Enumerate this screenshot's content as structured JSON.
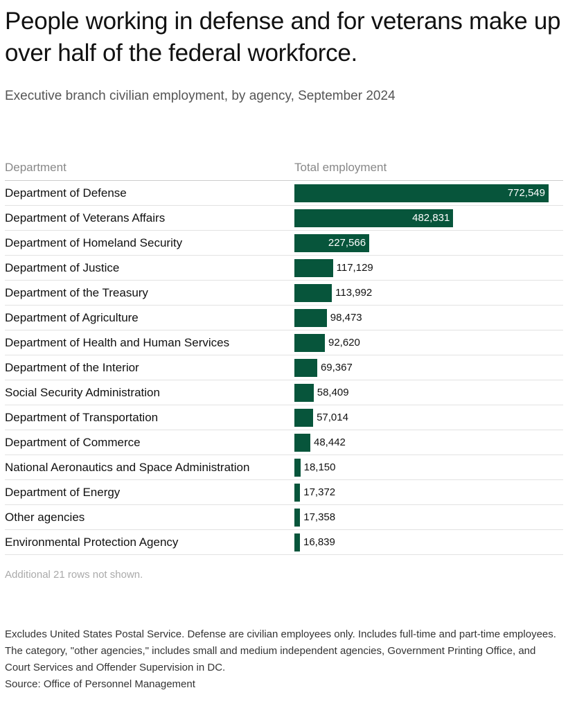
{
  "chart_data": {
    "type": "bar",
    "title": "People working in defense and for veterans make up over half of the federal workforce.",
    "subtitle": "Executive branch civilian employment, by agency, September 2024",
    "columns": [
      "Department",
      "Total employment"
    ],
    "categories": [
      "Department of Defense",
      "Department of Veterans Affairs",
      "Department of Homeland Security",
      "Department of Justice",
      "Department of the Treasury",
      "Department of Agriculture",
      "Department of Health and Human Services",
      "Department of the Interior",
      "Social Security Administration",
      "Department of Transportation",
      "Department of Commerce",
      "National Aeronautics and Space Administration",
      "Department of Energy",
      "Other agencies",
      "Environmental Protection Agency"
    ],
    "values": [
      772549,
      482831,
      227566,
      117129,
      113992,
      98473,
      92620,
      69367,
      58409,
      57014,
      48442,
      18150,
      17372,
      17358,
      16839
    ],
    "value_labels": [
      "772,549",
      "482,831",
      "227,566",
      "117,129",
      "113,992",
      "98,473",
      "92,620",
      "69,367",
      "58,409",
      "57,014",
      "48,442",
      "18,150",
      "17,372",
      "17,358",
      "16,839"
    ],
    "color": "#07553b",
    "more_rows": "Additional 21 rows not shown.",
    "note": "Excludes United States Postal Service. Defense are civilian employees only. Includes full-time and part-time employees. The category, \"other agencies,\" includes small and medium independent agencies, Government Printing Office, and Court Services and Offender Supervision in DC.",
    "source": "Source: Office of Personnel Management"
  }
}
